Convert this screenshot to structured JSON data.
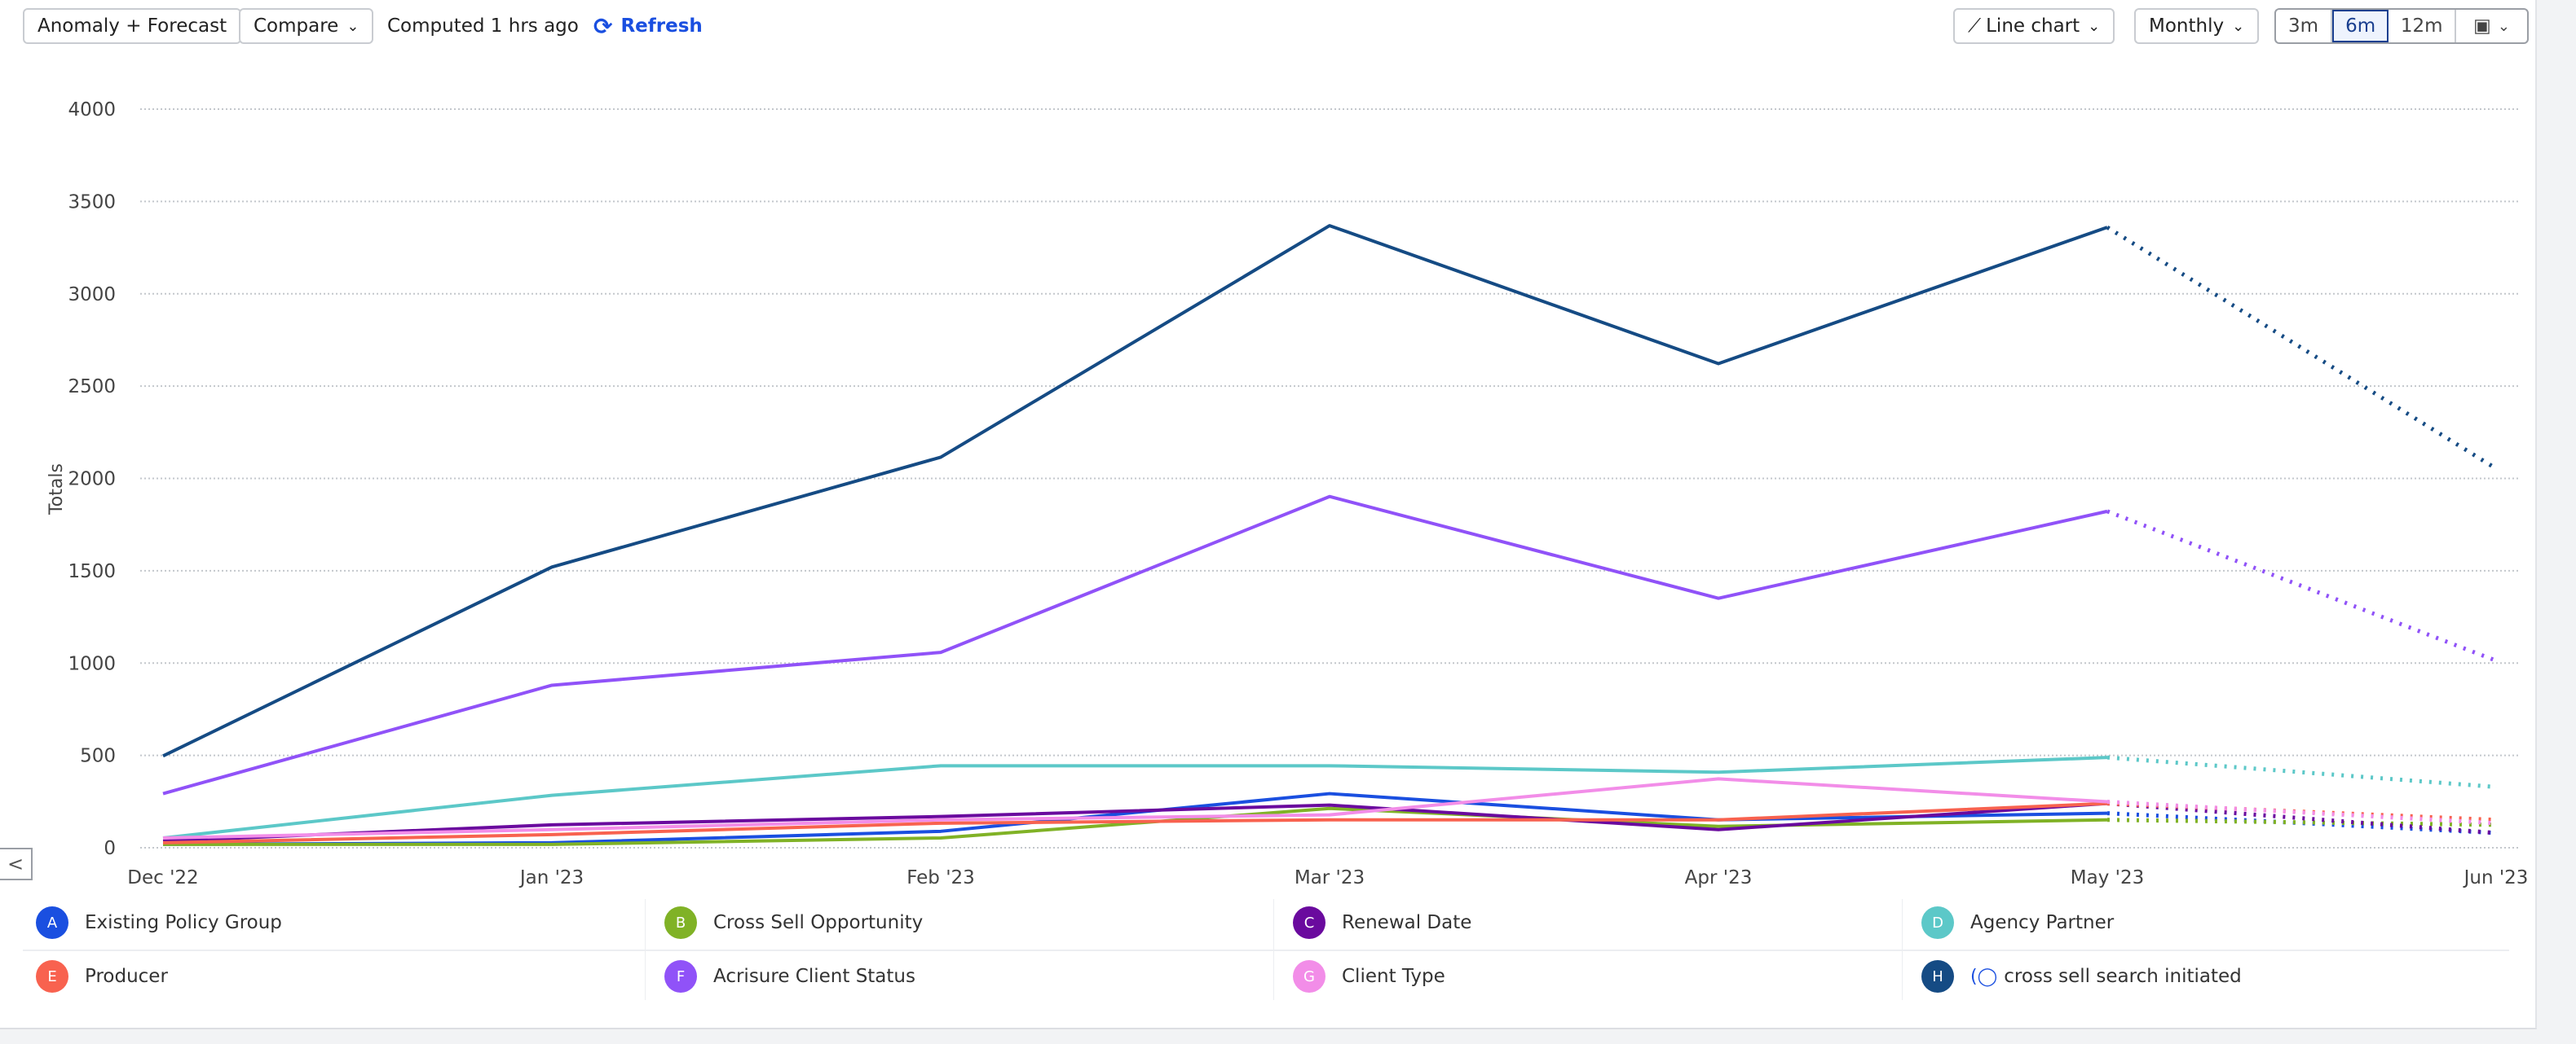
{
  "toolbar": {
    "mode_button": "Anomaly + Forecast",
    "compare_button": "Compare",
    "computed_text": "Computed 1 hrs ago",
    "refresh_label": "Refresh",
    "chart_type_button": "Line chart",
    "interval_button": "Monthly",
    "ranges": [
      {
        "label": "3m",
        "active": false
      },
      {
        "label": "6m",
        "active": true
      },
      {
        "label": "12m",
        "active": false
      }
    ],
    "calendar_icon": "calendar-icon"
  },
  "chart_data": {
    "type": "line",
    "title": "",
    "xlabel": "",
    "ylabel": "Totals",
    "x": [
      "Dec '22",
      "Jan '23",
      "Feb '23",
      "Mar '23",
      "Apr '23",
      "May '23",
      "Jun '23"
    ],
    "forecast_from_index": 5,
    "ylim": [
      0,
      4000
    ],
    "yticks": [
      0,
      500,
      1000,
      1500,
      2000,
      2500,
      3000,
      3500,
      4000
    ],
    "grid": true,
    "legend_position": "bottom",
    "series": [
      {
        "letter": "A",
        "name": "Existing Policy Group",
        "color": "#1a4fe0",
        "values": [
          18,
          27,
          89,
          293,
          151,
          187,
          80
        ]
      },
      {
        "letter": "B",
        "name": "Cross Sell Opportunity",
        "color": "#80b226",
        "values": [
          18,
          18,
          53,
          213,
          116,
          151,
          124
        ]
      },
      {
        "letter": "C",
        "name": "Renewal Date",
        "color": "#6a0a9e",
        "values": [
          36,
          124,
          169,
          231,
          98,
          240,
          80
        ]
      },
      {
        "letter": "D",
        "name": "Agency Partner",
        "color": "#5cc8c8",
        "values": [
          53,
          284,
          444,
          444,
          409,
          489,
          329
        ]
      },
      {
        "letter": "E",
        "name": "Producer",
        "color": "#f8624f",
        "values": [
          27,
          71,
          133,
          151,
          151,
          240,
          151
        ]
      },
      {
        "letter": "F",
        "name": "Acrisure Client Status",
        "color": "#9052f8",
        "values": [
          293,
          880,
          1058,
          1902,
          1351,
          1822,
          1013
        ]
      },
      {
        "letter": "G",
        "name": "Client Type",
        "color": "#f28de8",
        "values": [
          53,
          98,
          151,
          178,
          373,
          249,
          133
        ]
      },
      {
        "letter": "H",
        "name": "cross sell search initiated",
        "color": "#154b84",
        "cohort": true,
        "values": [
          497,
          1520,
          2115,
          3369,
          2622,
          3360,
          2053
        ]
      }
    ]
  },
  "collapse_button": "<"
}
